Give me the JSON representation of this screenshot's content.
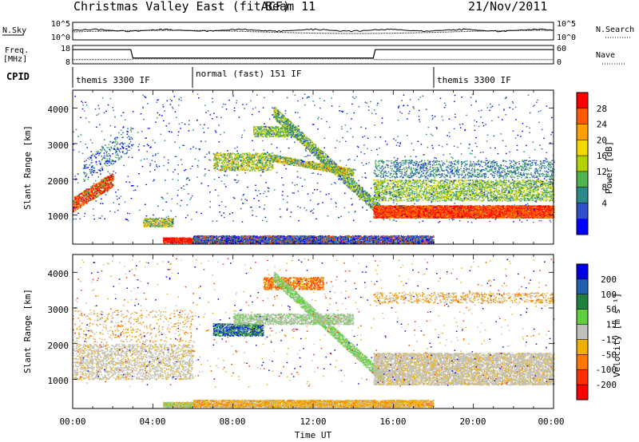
{
  "header": {
    "title": "Christmas Valley East (fitACF)",
    "beam": "Beam 11",
    "date": "21/Nov/2011"
  },
  "aux_panels": {
    "nsky_label": "N.Sky",
    "nsky_ticks": [
      "10^5",
      "10^0"
    ],
    "nsearch_label": "N.Search",
    "nsearch_ticks": [
      "10^5",
      "10^0"
    ],
    "freq_label": "Freq.",
    "freq_unit": "[MHz]",
    "freq_ticks": [
      "18",
      "8"
    ],
    "nave_label": "Nave",
    "nave_ticks": [
      "60",
      "0"
    ],
    "cpid_label": "CPID",
    "cpid_segments": [
      {
        "label": "themis 3300 IF",
        "start_hour": 0
      },
      {
        "label": "normal (fast) 151 IF",
        "start_hour": 6
      },
      {
        "label": "themis 3300 IF",
        "start_hour": 18
      }
    ]
  },
  "chart_data": [
    {
      "type": "heatmap",
      "name": "power-panel",
      "ylabel": "Slant Range [km]",
      "yticks": [
        "1000",
        "2000",
        "3000",
        "4000"
      ],
      "ylim": [
        180,
        4500
      ],
      "xlim": [
        0,
        24
      ],
      "colorbar": {
        "label": "Power [dB]",
        "ticks": [
          "28",
          "24",
          "20",
          "16",
          "12",
          "8",
          "4"
        ],
        "colors": [
          "#ff0000",
          "#ff5a00",
          "#ffa000",
          "#f0d800",
          "#b4d200",
          "#50b450",
          "#2a8a8a",
          "#3050c8",
          "#0000ff"
        ]
      }
    },
    {
      "type": "heatmap",
      "name": "velocity-panel",
      "xlabel": "Time UT",
      "ylabel": "Slant Range [km]",
      "yticks": [
        "1000",
        "2000",
        "3000",
        "4000"
      ],
      "xticks": [
        "00:00",
        "04:00",
        "08:00",
        "12:00",
        "16:00",
        "20:00",
        "00:00"
      ],
      "ylim": [
        180,
        4500
      ],
      "xlim": [
        0,
        24
      ],
      "colorbar": {
        "label": "Velocity [m s⁻¹]",
        "ticks": [
          "200",
          "100",
          "50",
          "15",
          "-15",
          "-50",
          "-100",
          "-200"
        ],
        "colors": [
          "#0000e0",
          "#2060b0",
          "#208040",
          "#60d040",
          "#c0c0b8",
          "#f0b000",
          "#ff7800",
          "#ff3000",
          "#ff0000"
        ]
      }
    }
  ]
}
